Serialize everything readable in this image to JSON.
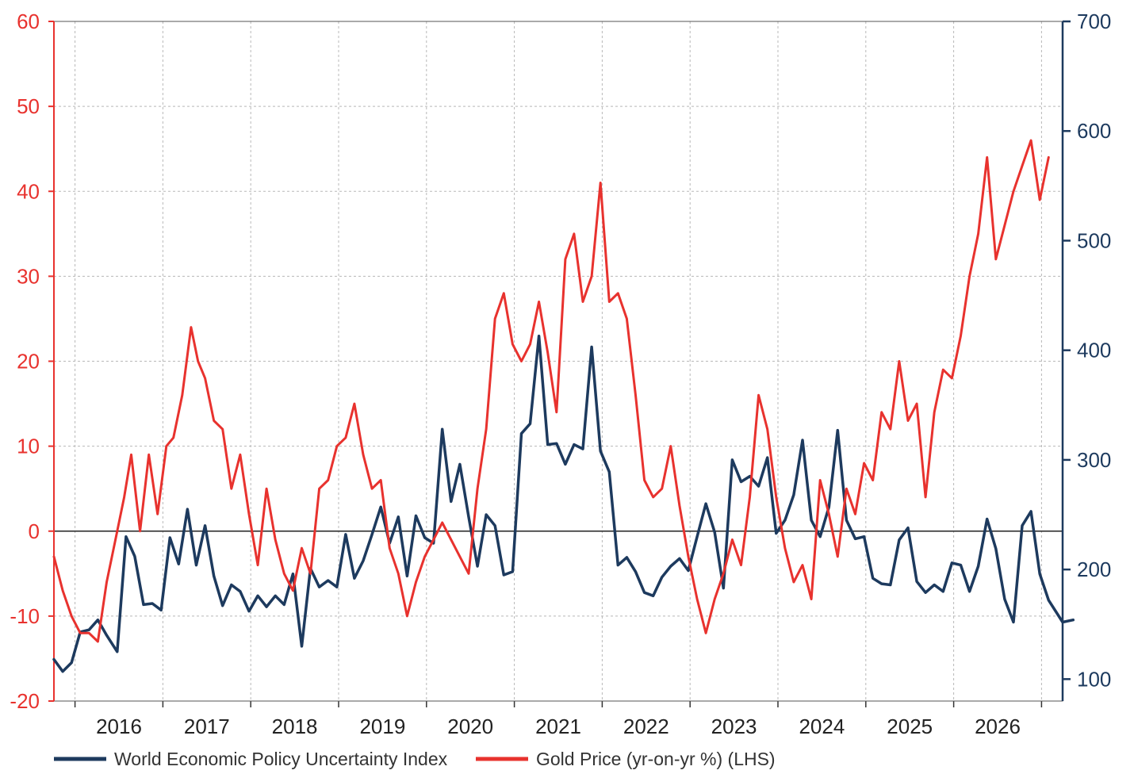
{
  "chart_data": {
    "type": "line",
    "title": "",
    "xlabel": "",
    "x_ticks": [
      "2016",
      "2017",
      "2018",
      "2019",
      "2020",
      "2021",
      "2022",
      "2023",
      "2024",
      "2025",
      "2026"
    ],
    "x_range": [
      2015.26,
      2026.74
    ],
    "left_axis": {
      "label": "",
      "ylim": [
        -20,
        60
      ],
      "ticks": [
        "-20",
        "-10",
        "0",
        "10",
        "20",
        "30",
        "40",
        "50",
        "60"
      ],
      "color": "#e8322e"
    },
    "right_axis": {
      "label": "",
      "ylim": [
        80,
        700
      ],
      "ticks": [
        "100",
        "200",
        "300",
        "400",
        "500",
        "600",
        "700"
      ],
      "color": "#1d3a5e"
    },
    "grid": true,
    "legend_position": "bottom",
    "series": [
      {
        "name": "World Economic Policy Uncertainty Index",
        "axis": "right",
        "color": "#1d3a5e",
        "points": [
          [
            2015.26,
            118
          ],
          [
            2015.36,
            107
          ],
          [
            2015.46,
            115
          ],
          [
            2015.56,
            143
          ],
          [
            2015.66,
            145
          ],
          [
            2015.76,
            154
          ],
          [
            2015.86,
            140
          ],
          [
            2015.98,
            125
          ],
          [
            2016.08,
            230
          ],
          [
            2016.18,
            212
          ],
          [
            2016.28,
            168
          ],
          [
            2016.38,
            169
          ],
          [
            2016.48,
            163
          ],
          [
            2016.58,
            229
          ],
          [
            2016.68,
            205
          ],
          [
            2016.78,
            255
          ],
          [
            2016.88,
            204
          ],
          [
            2016.98,
            240
          ],
          [
            2017.08,
            194
          ],
          [
            2017.18,
            167
          ],
          [
            2017.28,
            186
          ],
          [
            2017.38,
            180
          ],
          [
            2017.48,
            162
          ],
          [
            2017.58,
            176
          ],
          [
            2017.68,
            166
          ],
          [
            2017.78,
            176
          ],
          [
            2017.88,
            168
          ],
          [
            2017.98,
            196
          ],
          [
            2018.08,
            130
          ],
          [
            2018.18,
            201
          ],
          [
            2018.28,
            184
          ],
          [
            2018.38,
            190
          ],
          [
            2018.48,
            184
          ],
          [
            2018.58,
            232
          ],
          [
            2018.68,
            192
          ],
          [
            2018.78,
            208
          ],
          [
            2018.88,
            232
          ],
          [
            2018.98,
            257
          ],
          [
            2019.08,
            224
          ],
          [
            2019.18,
            248
          ],
          [
            2019.28,
            194
          ],
          [
            2019.38,
            249
          ],
          [
            2019.48,
            229
          ],
          [
            2019.58,
            224
          ],
          [
            2019.68,
            328
          ],
          [
            2019.78,
            262
          ],
          [
            2019.88,
            296
          ],
          [
            2019.98,
            248
          ],
          [
            2020.08,
            203
          ],
          [
            2020.18,
            250
          ],
          [
            2020.28,
            240
          ],
          [
            2020.38,
            195
          ],
          [
            2020.48,
            198
          ],
          [
            2020.58,
            324
          ],
          [
            2020.68,
            333
          ],
          [
            2020.78,
            413
          ],
          [
            2020.88,
            314
          ],
          [
            2020.98,
            315
          ],
          [
            2021.08,
            296
          ],
          [
            2021.18,
            314
          ],
          [
            2021.28,
            310
          ],
          [
            2021.38,
            403
          ],
          [
            2021.48,
            308
          ],
          [
            2021.58,
            289
          ],
          [
            2021.68,
            204
          ],
          [
            2021.78,
            211
          ],
          [
            2021.88,
            198
          ],
          [
            2021.98,
            179
          ],
          [
            2022.08,
            176
          ],
          [
            2022.18,
            193
          ],
          [
            2022.28,
            203
          ],
          [
            2022.38,
            210
          ],
          [
            2022.48,
            199
          ],
          [
            2022.58,
            230
          ],
          [
            2022.68,
            260
          ],
          [
            2022.78,
            234
          ],
          [
            2022.88,
            183
          ],
          [
            2022.98,
            300
          ],
          [
            2023.08,
            280
          ],
          [
            2023.18,
            285
          ],
          [
            2023.28,
            276
          ],
          [
            2023.38,
            302
          ],
          [
            2023.48,
            233
          ],
          [
            2023.58,
            245
          ],
          [
            2023.68,
            268
          ],
          [
            2023.78,
            318
          ],
          [
            2023.88,
            245
          ],
          [
            2023.98,
            230
          ],
          [
            2024.08,
            257
          ],
          [
            2024.18,
            327
          ],
          [
            2024.28,
            245
          ],
          [
            2024.38,
            228
          ],
          [
            2024.48,
            230
          ],
          [
            2024.58,
            192
          ],
          [
            2024.68,
            187
          ],
          [
            2024.78,
            186
          ],
          [
            2024.88,
            227
          ],
          [
            2024.98,
            238
          ],
          [
            2025.08,
            189
          ],
          [
            2025.18,
            179
          ],
          [
            2025.28,
            186
          ],
          [
            2025.38,
            180
          ],
          [
            2025.48,
            206
          ],
          [
            2025.58,
            204
          ],
          [
            2025.68,
            180
          ],
          [
            2025.78,
            203
          ],
          [
            2025.88,
            246
          ],
          [
            2025.98,
            219
          ],
          [
            2026.08,
            173
          ],
          [
            2026.18,
            152
          ],
          [
            2026.28,
            240
          ],
          [
            2026.38,
            253
          ],
          [
            2026.48,
            196
          ],
          [
            2026.58,
            172
          ],
          [
            2026.74,
            152
          ],
          [
            2026.86,
            154
          ]
        ]
      },
      {
        "name": "Gold Price (yr-on-yr %) (LHS)",
        "axis": "left",
        "color": "#e8322e",
        "points": [
          [
            2015.26,
            -3
          ],
          [
            2015.36,
            -7
          ],
          [
            2015.46,
            -10
          ],
          [
            2015.56,
            -12
          ],
          [
            2015.66,
            -12
          ],
          [
            2015.76,
            -13
          ],
          [
            2015.86,
            -6
          ],
          [
            2015.96,
            -1
          ],
          [
            2016.06,
            4
          ],
          [
            2016.14,
            9
          ],
          [
            2016.24,
            0
          ],
          [
            2016.34,
            9
          ],
          [
            2016.44,
            2
          ],
          [
            2016.54,
            10
          ],
          [
            2016.62,
            11
          ],
          [
            2016.72,
            16
          ],
          [
            2016.82,
            24
          ],
          [
            2016.9,
            20
          ],
          [
            2016.98,
            18
          ],
          [
            2017.08,
            13
          ],
          [
            2017.18,
            12
          ],
          [
            2017.28,
            5
          ],
          [
            2017.38,
            9
          ],
          [
            2017.48,
            2
          ],
          [
            2017.58,
            -4
          ],
          [
            2017.68,
            5
          ],
          [
            2017.78,
            -1
          ],
          [
            2017.88,
            -5
          ],
          [
            2017.98,
            -7
          ],
          [
            2018.08,
            -2
          ],
          [
            2018.18,
            -5
          ],
          [
            2018.28,
            5
          ],
          [
            2018.38,
            6
          ],
          [
            2018.48,
            10
          ],
          [
            2018.58,
            11
          ],
          [
            2018.68,
            15
          ],
          [
            2018.78,
            9
          ],
          [
            2018.88,
            5
          ],
          [
            2018.98,
            6
          ],
          [
            2019.08,
            -2
          ],
          [
            2019.18,
            -5
          ],
          [
            2019.28,
            -10
          ],
          [
            2019.38,
            -6
          ],
          [
            2019.48,
            -3
          ],
          [
            2019.58,
            -1
          ],
          [
            2019.68,
            1
          ],
          [
            2019.78,
            -1
          ],
          [
            2019.88,
            -3
          ],
          [
            2019.98,
            -5
          ],
          [
            2020.08,
            5
          ],
          [
            2020.18,
            12
          ],
          [
            2020.28,
            25
          ],
          [
            2020.38,
            28
          ],
          [
            2020.48,
            22
          ],
          [
            2020.58,
            20
          ],
          [
            2020.68,
            22
          ],
          [
            2020.78,
            27
          ],
          [
            2020.88,
            21
          ],
          [
            2020.98,
            14
          ],
          [
            2021.08,
            32
          ],
          [
            2021.18,
            35
          ],
          [
            2021.28,
            27
          ],
          [
            2021.38,
            30
          ],
          [
            2021.48,
            41
          ],
          [
            2021.58,
            27
          ],
          [
            2021.68,
            28
          ],
          [
            2021.78,
            25
          ],
          [
            2021.88,
            16
          ],
          [
            2021.98,
            6
          ],
          [
            2022.08,
            4
          ],
          [
            2022.18,
            5
          ],
          [
            2022.28,
            10
          ],
          [
            2022.38,
            3
          ],
          [
            2022.48,
            -3
          ],
          [
            2022.58,
            -8
          ],
          [
            2022.68,
            -12
          ],
          [
            2022.78,
            -8
          ],
          [
            2022.88,
            -5
          ],
          [
            2022.98,
            -1
          ],
          [
            2023.08,
            -4
          ],
          [
            2023.18,
            4
          ],
          [
            2023.28,
            16
          ],
          [
            2023.38,
            12
          ],
          [
            2023.48,
            4
          ],
          [
            2023.58,
            -2
          ],
          [
            2023.68,
            -6
          ],
          [
            2023.78,
            -4
          ],
          [
            2023.88,
            -8
          ],
          [
            2023.98,
            6
          ],
          [
            2024.08,
            2
          ],
          [
            2024.18,
            -3
          ],
          [
            2024.28,
            5
          ],
          [
            2024.38,
            2
          ],
          [
            2024.48,
            8
          ],
          [
            2024.58,
            6
          ],
          [
            2024.68,
            14
          ],
          [
            2024.78,
            12
          ],
          [
            2024.88,
            20
          ],
          [
            2024.98,
            13
          ],
          [
            2025.08,
            15
          ],
          [
            2025.18,
            4
          ],
          [
            2025.28,
            14
          ],
          [
            2025.38,
            19
          ],
          [
            2025.48,
            18
          ],
          [
            2025.58,
            23
          ],
          [
            2025.68,
            30
          ],
          [
            2025.78,
            35
          ],
          [
            2025.88,
            44
          ],
          [
            2025.98,
            32
          ],
          [
            2026.08,
            36
          ],
          [
            2026.18,
            40
          ],
          [
            2026.28,
            43
          ],
          [
            2026.38,
            46
          ],
          [
            2026.48,
            39
          ],
          [
            2026.58,
            44
          ]
        ]
      }
    ]
  }
}
